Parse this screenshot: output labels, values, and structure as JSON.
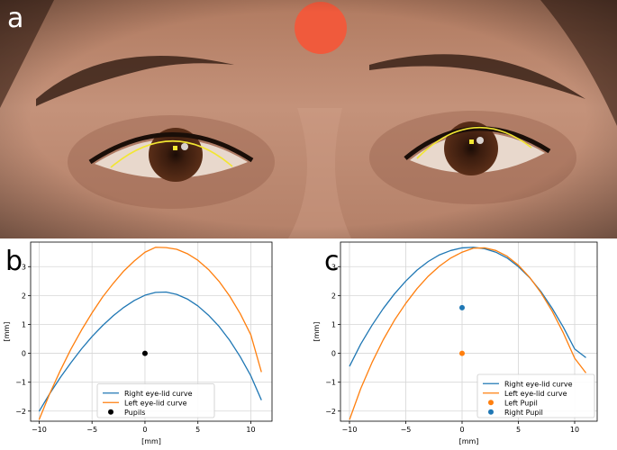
{
  "panels": {
    "a_letter": "a",
    "b_letter": "b",
    "c_letter": "c"
  },
  "photo": {
    "lid_curve_color": "#f2e632",
    "pupil_marker_color": "#f2e632",
    "forehead_dot_color": "#f05a3c"
  },
  "chart_data": [
    {
      "id": "b",
      "type": "line",
      "title": "",
      "xlabel": "[mm]",
      "ylabel": "[mm]",
      "xlim": [
        -10.8,
        12
      ],
      "ylim": [
        -2.35,
        3.85
      ],
      "xticks": [
        -10,
        -5,
        0,
        5,
        10
      ],
      "yticks": [
        -2,
        -1,
        0,
        1,
        2,
        3
      ],
      "grid": true,
      "legend_position": "lower-center",
      "series": [
        {
          "name": "Right eye-lid curve",
          "color": "#1f77b4",
          "kind": "line",
          "x": [
            -10,
            -9,
            -8,
            -7,
            -6,
            -5,
            -4,
            -3,
            -2,
            -1,
            0,
            1,
            2,
            3,
            4,
            5,
            6,
            7,
            8,
            9,
            10,
            11
          ],
          "y": [
            -2.01,
            -1.4,
            -0.84,
            -0.33,
            0.15,
            0.58,
            0.96,
            1.3,
            1.59,
            1.83,
            2.01,
            2.11,
            2.12,
            2.04,
            1.88,
            1.64,
            1.32,
            0.93,
            0.45,
            -0.12,
            -0.78,
            -1.62
          ]
        },
        {
          "name": "Left eye-lid curve",
          "color": "#ff7f0e",
          "kind": "line",
          "x": [
            -10,
            -9,
            -8,
            -7,
            -6,
            -5,
            -4,
            -3,
            -2,
            -1,
            0,
            1,
            2,
            3,
            4,
            5,
            6,
            7,
            8,
            9,
            10,
            11
          ],
          "y": [
            -2.3,
            -1.4,
            -0.6,
            0.14,
            0.8,
            1.4,
            1.95,
            2.42,
            2.85,
            3.2,
            3.5,
            3.67,
            3.66,
            3.6,
            3.45,
            3.22,
            2.9,
            2.49,
            1.98,
            1.37,
            0.64,
            -0.65
          ]
        },
        {
          "name": "Pupils",
          "color": "#000000",
          "kind": "scatter",
          "x": [
            0
          ],
          "y": [
            0
          ]
        }
      ]
    },
    {
      "id": "c",
      "type": "line",
      "title": "",
      "xlabel": "[mm]",
      "ylabel": "[mm]",
      "xlim": [
        -10.8,
        12
      ],
      "ylim": [
        -2.35,
        3.85
      ],
      "xticks": [
        -10,
        -5,
        0,
        5,
        10
      ],
      "yticks": [
        -2,
        -1,
        0,
        1,
        2,
        3
      ],
      "grid": true,
      "legend_position": "lower-right",
      "series": [
        {
          "name": "Right eye-lid curve",
          "color": "#1f77b4",
          "kind": "line",
          "x": [
            -10,
            -9,
            -8,
            -7,
            -6,
            -5,
            -4,
            -3,
            -2,
            -1,
            0,
            1,
            2,
            3,
            4,
            5,
            6,
            7,
            8,
            9,
            10,
            11
          ],
          "y": [
            -0.45,
            0.32,
            0.97,
            1.55,
            2.06,
            2.5,
            2.88,
            3.18,
            3.41,
            3.56,
            3.65,
            3.67,
            3.62,
            3.5,
            3.3,
            3.0,
            2.62,
            2.14,
            1.56,
            0.9,
            0.15,
            -0.15
          ]
        },
        {
          "name": "Left eye-lid curve",
          "color": "#ff7f0e",
          "kind": "line",
          "x": [
            -10,
            -9,
            -8,
            -7,
            -6,
            -5,
            -4,
            -3,
            -2,
            -1,
            0,
            1,
            2,
            3,
            4,
            5,
            6,
            7,
            8,
            9,
            10,
            11
          ],
          "y": [
            -2.3,
            -1.22,
            -0.32,
            0.47,
            1.15,
            1.73,
            2.24,
            2.67,
            3.02,
            3.3,
            3.5,
            3.64,
            3.65,
            3.56,
            3.36,
            3.05,
            2.63,
            2.1,
            1.46,
            0.7,
            -0.17,
            -0.68
          ]
        },
        {
          "name": "Left Pupil",
          "color": "#ff7f0e",
          "kind": "scatter",
          "x": [
            0
          ],
          "y": [
            0
          ]
        },
        {
          "name": "Right Pupil",
          "color": "#1f77b4",
          "kind": "scatter",
          "x": [
            0
          ],
          "y": [
            1.58
          ]
        }
      ]
    }
  ]
}
